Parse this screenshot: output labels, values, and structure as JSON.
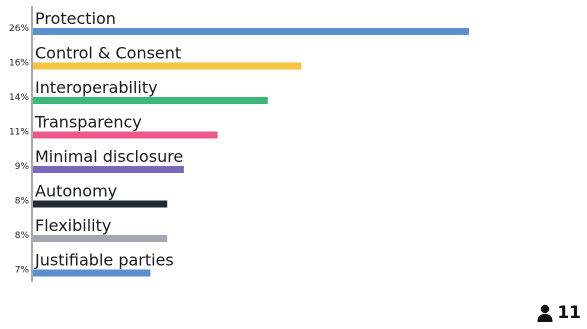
{
  "chart_data": {
    "type": "bar",
    "orientation": "horizontal",
    "categories": [
      "Protection",
      "Control & Consent",
      "Interoperability",
      "Transparency",
      "Minimal disclosure",
      "Autonomy",
      "Flexibility",
      "Justifiable parties"
    ],
    "values": [
      26,
      16,
      14,
      11,
      9,
      8,
      8,
      7
    ],
    "value_labels": [
      "26%",
      "16%",
      "14%",
      "11%",
      "9%",
      "8%",
      "8%",
      "7%"
    ],
    "colors": [
      "#5b8fd0",
      "#f5c242",
      "#3ab87a",
      "#e8588a",
      "#7c68b8",
      "#222a36",
      "#a2a8b2",
      "#5b8fd0"
    ],
    "xlim": [
      0,
      32.5
    ],
    "grid": false,
    "legend": "none"
  },
  "participants": {
    "icon": "person-icon",
    "count": "11"
  }
}
